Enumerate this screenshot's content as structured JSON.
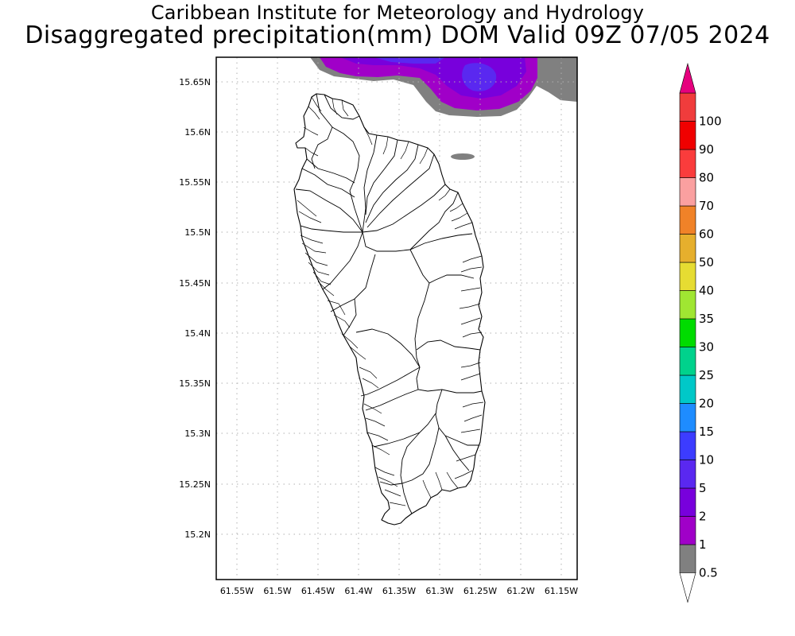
{
  "header": {
    "title_line1": "Caribbean Institute for Meteorology and Hydrology",
    "title_line2": "Disaggregated precipitation(mm) DOM Valid 09Z 07/05 2024"
  },
  "map": {
    "lat_labels": [
      "15.65N",
      "15.6N",
      "15.55N",
      "15.5N",
      "15.45N",
      "15.4N",
      "15.35N",
      "15.3N",
      "15.25N",
      "15.2N"
    ],
    "lon_labels": [
      "61.55W",
      "61.5W",
      "61.45W",
      "61.4W",
      "61.35W",
      "61.3W",
      "61.25W",
      "61.2W",
      "61.15W"
    ],
    "grid": true,
    "precip_colors": {
      "0.5-1": "#808080",
      "1-2": "#a000c8",
      "2-5": "#7800dc",
      "5-10": "#5a28f0"
    }
  },
  "colorbar": {
    "labels": [
      "0.5",
      "1",
      "2",
      "5",
      "10",
      "15",
      "20",
      "25",
      "30",
      "35",
      "40",
      "50",
      "60",
      "70",
      "80",
      "90",
      "100"
    ],
    "colors": [
      "#808080",
      "#a000c8",
      "#7800dc",
      "#5a28f0",
      "#3c3cff",
      "#1e8cff",
      "#00c8c8",
      "#00d28c",
      "#00dc00",
      "#a0e632",
      "#e6dc32",
      "#e6af2d",
      "#f08228",
      "#faa0a0",
      "#fa3c3c",
      "#f00000",
      "#f03c3c"
    ],
    "bottom_arrow_color": "#ffffff",
    "top_arrow_color": "#e6007e"
  }
}
